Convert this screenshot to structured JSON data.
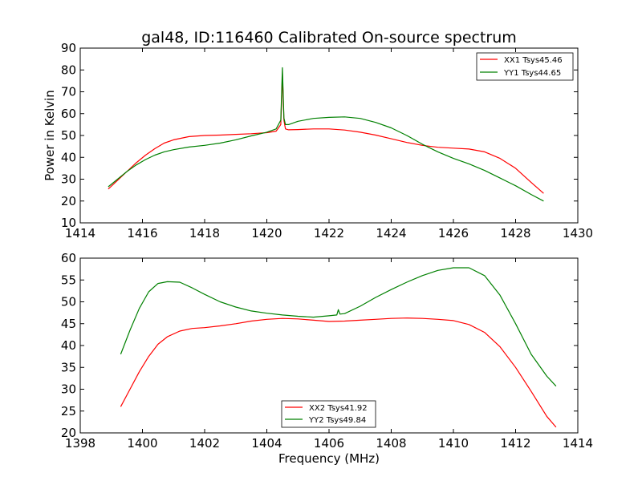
{
  "chart_data": [
    {
      "type": "line",
      "title": "gal48, ID:116460 Calibrated On-source spectrum",
      "xlabel": "",
      "ylabel": "Power in Kelvin",
      "xlim": [
        1414,
        1430
      ],
      "ylim": [
        10,
        90
      ],
      "xticks": [
        1414,
        1416,
        1418,
        1420,
        1422,
        1424,
        1426,
        1428,
        1430
      ],
      "yticks": [
        10,
        20,
        30,
        40,
        50,
        60,
        70,
        80,
        90
      ],
      "grid": false,
      "legend_position": "top-right",
      "series": [
        {
          "name": "XX1 Tsys45.46",
          "color": "#ff0000",
          "x": [
            1414.9,
            1415.2,
            1415.5,
            1415.8,
            1416.1,
            1416.4,
            1416.7,
            1417.0,
            1417.5,
            1418.0,
            1418.5,
            1419.0,
            1419.5,
            1420.0,
            1420.3,
            1420.45,
            1420.5,
            1420.55,
            1420.6,
            1420.7,
            1421.0,
            1421.5,
            1422.0,
            1422.5,
            1423.0,
            1423.5,
            1424.0,
            1424.5,
            1425.0,
            1425.5,
            1426.0,
            1426.5,
            1427.0,
            1427.5,
            1428.0,
            1428.5,
            1428.9
          ],
          "y": [
            25.5,
            29.5,
            33.5,
            37.5,
            41,
            44,
            46.5,
            48,
            49.5,
            50,
            50.2,
            50.5,
            50.8,
            51.3,
            52,
            55,
            78,
            57,
            53,
            52.6,
            52.7,
            53,
            53,
            52.5,
            51.5,
            50.2,
            48.5,
            46.8,
            45.5,
            44.6,
            44.2,
            43.8,
            42.5,
            39.5,
            35,
            28.5,
            23.5
          ]
        },
        {
          "name": "YY1 Tsys44.65",
          "color": "#008000",
          "x": [
            1414.9,
            1415.2,
            1415.5,
            1415.8,
            1416.1,
            1416.4,
            1416.7,
            1417.0,
            1417.5,
            1418.0,
            1418.5,
            1419.0,
            1419.5,
            1420.0,
            1420.3,
            1420.45,
            1420.5,
            1420.55,
            1420.6,
            1420.7,
            1421.0,
            1421.5,
            1422.0,
            1422.5,
            1423.0,
            1423.5,
            1424.0,
            1424.5,
            1425.0,
            1425.5,
            1426.0,
            1426.5,
            1427.0,
            1427.5,
            1428.0,
            1428.5,
            1428.9
          ],
          "y": [
            26.5,
            30,
            33.5,
            36.5,
            39,
            41,
            42.5,
            43.5,
            44.7,
            45.5,
            46.5,
            48,
            49.8,
            51.5,
            53,
            57,
            81,
            58,
            55,
            55,
            56.5,
            57.8,
            58.3,
            58.5,
            57.8,
            56,
            53.5,
            50,
            46,
            42.5,
            39.5,
            37,
            34,
            30.5,
            27,
            23,
            20
          ]
        }
      ]
    },
    {
      "type": "line",
      "title": "",
      "xlabel": "Frequency (MHz)",
      "ylabel": "",
      "xlim": [
        1398,
        1414
      ],
      "ylim": [
        20,
        60
      ],
      "xticks": [
        1398,
        1400,
        1402,
        1404,
        1406,
        1408,
        1410,
        1412,
        1414
      ],
      "yticks": [
        20,
        25,
        30,
        35,
        40,
        45,
        50,
        55,
        60
      ],
      "grid": false,
      "legend_position": "bottom-center",
      "series": [
        {
          "name": "XX2 Tsys41.92",
          "color": "#ff0000",
          "x": [
            1399.3,
            1399.6,
            1399.9,
            1400.2,
            1400.5,
            1400.8,
            1401.2,
            1401.6,
            1402.0,
            1402.5,
            1403.0,
            1403.5,
            1404.0,
            1404.5,
            1405.0,
            1405.5,
            1406.0,
            1406.5,
            1407.0,
            1407.5,
            1408.0,
            1408.5,
            1409.0,
            1409.5,
            1410.0,
            1410.5,
            1411.0,
            1411.5,
            1412.0,
            1412.5,
            1413.0,
            1413.3
          ],
          "y": [
            26,
            30,
            34,
            37.5,
            40.3,
            42,
            43.3,
            43.9,
            44.1,
            44.5,
            45,
            45.6,
            46,
            46.2,
            46.1,
            45.8,
            45.5,
            45.6,
            45.8,
            46,
            46.2,
            46.3,
            46.2,
            46,
            45.7,
            44.8,
            43,
            39.7,
            35,
            29.5,
            23.8,
            21.3
          ]
        },
        {
          "name": "YY2 Tsys49.84",
          "color": "#008000",
          "x": [
            1399.3,
            1399.6,
            1399.9,
            1400.2,
            1400.5,
            1400.8,
            1401.2,
            1401.6,
            1402.0,
            1402.5,
            1403.0,
            1403.5,
            1404.0,
            1404.5,
            1405.0,
            1405.5,
            1406.0,
            1406.25,
            1406.3,
            1406.35,
            1406.5,
            1407.0,
            1407.5,
            1408.0,
            1408.5,
            1409.0,
            1409.5,
            1410.0,
            1410.5,
            1411.0,
            1411.5,
            1412.0,
            1412.5,
            1413.0,
            1413.3
          ],
          "y": [
            38,
            43.5,
            48.5,
            52.3,
            54.2,
            54.6,
            54.5,
            53.2,
            51.7,
            50,
            48.8,
            47.9,
            47.4,
            47,
            46.7,
            46.5,
            46.8,
            47,
            48.2,
            47.2,
            47.3,
            49,
            51,
            52.8,
            54.5,
            56,
            57.2,
            57.8,
            57.8,
            56,
            51.5,
            45,
            38,
            33,
            30.7
          ]
        }
      ]
    }
  ]
}
